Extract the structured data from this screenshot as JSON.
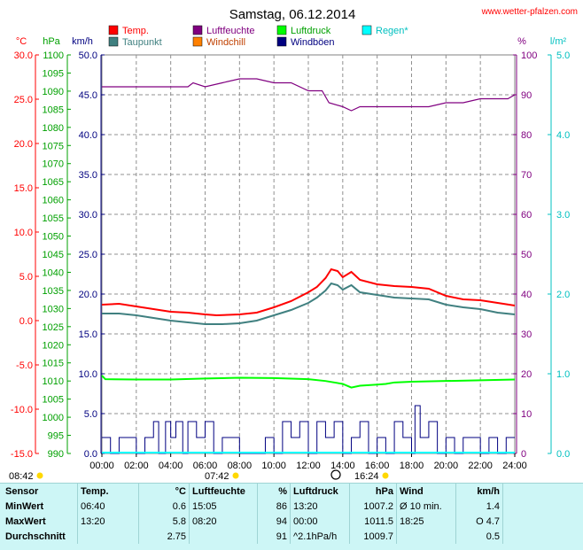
{
  "header": {
    "title": "Samstag, 06.12.2014",
    "site": "www.wetter-pfalzen.com"
  },
  "legend": [
    {
      "label": "Temp.",
      "color": "#ff0000"
    },
    {
      "label": "Luftfeuchte",
      "color": "#800080"
    },
    {
      "label": "Luftdruck",
      "color": "#00ff00"
    },
    {
      "label": "Regen*",
      "color": "#00ffff"
    },
    {
      "label": "Taupunkt",
      "color": "#408080"
    },
    {
      "label": "Windchill",
      "color": "#ff8000"
    },
    {
      "label": "Windböen",
      "color": "#000080"
    }
  ],
  "units": {
    "temp": "°C",
    "pressure": "hPa",
    "wind": "km/h",
    "humidity": "%",
    "rain": "l/m²"
  },
  "axes": {
    "temp_ticks": [
      "30.0",
      "25.0",
      "20.0",
      "15.0",
      "10.0",
      "5.0",
      "0.0",
      "-5.0",
      "-10.0",
      "-15.0"
    ],
    "pressure_ticks": [
      "1100",
      "1095",
      "1090",
      "1085",
      "1080",
      "1075",
      "1070",
      "1065",
      "1060",
      "1055",
      "1050",
      "1045",
      "1040",
      "1035",
      "1030",
      "1025",
      "1020",
      "1015",
      "1010",
      "1005",
      "1000",
      "995",
      "990"
    ],
    "wind_ticks": [
      "50.0",
      "45.0",
      "40.0",
      "35.0",
      "30.0",
      "25.0",
      "20.0",
      "15.0",
      "10.0",
      "5.0",
      "0.0"
    ],
    "humidity_ticks": [
      "100",
      "90",
      "80",
      "70",
      "60",
      "50",
      "40",
      "30",
      "20",
      "10",
      "0"
    ],
    "rain_ticks": [
      "5.0",
      "4.0",
      "3.0",
      "2.0",
      "1.0",
      "0.0"
    ],
    "x_ticks": [
      "00:00",
      "02:00",
      "04:00",
      "06:00",
      "08:00",
      "10:00",
      "12:00",
      "14:00",
      "16:00",
      "18:00",
      "20:00",
      "22:00",
      "24:00"
    ]
  },
  "sun": {
    "sunrise": "08:42",
    "noon": "07:42",
    "sunset": "16:24"
  },
  "chart_data": {
    "type": "line",
    "x_unit": "hour",
    "xlim": [
      0,
      24
    ],
    "ylim_temp": [
      -15,
      30
    ],
    "ylim_humidity": [
      0,
      100
    ],
    "ylim_wind": [
      0,
      50
    ],
    "ylim_pressure": [
      990,
      1100
    ],
    "series": [
      {
        "name": "Temp.",
        "axis": "temp",
        "color": "#ff0000",
        "x": [
          0,
          1,
          2,
          3,
          4,
          5,
          6,
          6.67,
          8,
          9,
          10,
          11,
          12,
          12.5,
          13,
          13.33,
          13.7,
          14,
          14.5,
          15,
          16,
          17,
          18,
          19,
          20,
          21,
          22,
          23,
          24
        ],
        "y": [
          1.8,
          1.9,
          1.6,
          1.3,
          1.0,
          0.9,
          0.7,
          0.6,
          0.7,
          0.9,
          1.5,
          2.2,
          3.2,
          3.8,
          4.8,
          5.8,
          5.6,
          4.9,
          5.5,
          4.6,
          4.1,
          3.9,
          3.8,
          3.6,
          2.8,
          2.4,
          2.3,
          2.0,
          1.7
        ]
      },
      {
        "name": "Taupunkt",
        "axis": "temp",
        "color": "#408080",
        "x": [
          0,
          1,
          2,
          3,
          4,
          5,
          6,
          7,
          8,
          9,
          10,
          11,
          12,
          12.5,
          13,
          13.33,
          13.7,
          14,
          14.5,
          15,
          16,
          17,
          18,
          19,
          20,
          21,
          22,
          23,
          24
        ],
        "y": [
          0.8,
          0.8,
          0.6,
          0.3,
          0.0,
          -0.2,
          -0.4,
          -0.4,
          -0.3,
          0.0,
          0.6,
          1.2,
          2.0,
          2.6,
          3.4,
          4.2,
          4.0,
          3.5,
          4.0,
          3.2,
          2.9,
          2.6,
          2.5,
          2.4,
          1.8,
          1.5,
          1.3,
          0.9,
          0.7
        ]
      },
      {
        "name": "Luftfeuchte",
        "axis": "humidity",
        "color": "#800080",
        "x": [
          0,
          4,
          5,
          5.3,
          6,
          7,
          8,
          9,
          10,
          11,
          12,
          12.8,
          13.2,
          14,
          14.5,
          15,
          16,
          17,
          18,
          19,
          20,
          21,
          22,
          23,
          23.6,
          24
        ],
        "y": [
          92,
          92,
          92,
          93,
          92,
          93,
          94,
          94,
          93,
          93,
          91,
          91,
          88,
          87,
          86,
          87,
          87,
          87,
          87,
          87,
          88,
          88,
          89,
          89,
          89,
          90
        ]
      },
      {
        "name": "Luftdruck",
        "axis": "pressure",
        "color": "#00ff00",
        "x": [
          0,
          0.2,
          2,
          4,
          6,
          8,
          10,
          12,
          13,
          14,
          14.5,
          15,
          16,
          16.5,
          17,
          18,
          20,
          22,
          24
        ],
        "y": [
          1011.5,
          1010.5,
          1010.4,
          1010.4,
          1010.7,
          1010.9,
          1010.8,
          1010.5,
          1010.0,
          1009.2,
          1008.2,
          1008.7,
          1009.0,
          1009.2,
          1009.6,
          1009.8,
          1010.0,
          1010.2,
          1010.4
        ]
      },
      {
        "name": "Windböen",
        "axis": "wind",
        "color": "#000080",
        "x": [
          0,
          0.5,
          1,
          2,
          2.5,
          3,
          3.3,
          3.7,
          4,
          4.3,
          4.7,
          5,
          5.5,
          6,
          6.5,
          7,
          8,
          9,
          9.5,
          10,
          10.5,
          11,
          11.5,
          12,
          12.5,
          13,
          13.5,
          14,
          14.5,
          15,
          15.5,
          16,
          16.5,
          17,
          17.5,
          18,
          18.2,
          18.5,
          19,
          19.5,
          20,
          20.5,
          21,
          21.5,
          22,
          22.5,
          23,
          23.5,
          24
        ],
        "y": [
          2,
          0,
          2,
          0,
          2,
          4,
          0,
          4,
          2,
          4,
          0,
          4,
          2,
          4,
          0,
          2,
          0,
          0,
          2,
          0,
          4,
          2,
          4,
          0,
          4,
          2,
          4,
          0,
          2,
          4,
          0,
          2,
          0,
          4,
          2,
          0,
          6,
          2,
          4,
          0,
          2,
          0,
          2,
          2,
          0,
          2,
          0,
          2,
          2
        ]
      }
    ]
  },
  "stats": {
    "headers": {
      "sensor": "Sensor",
      "temp": "Temp.",
      "temp_unit": "°C",
      "hum": "Luftfeuchte",
      "hum_unit": "%",
      "press": "Luftdruck",
      "press_unit": "hPa",
      "wind": "Wind",
      "wind_unit": "km/h"
    },
    "rows": [
      {
        "label": "MinWert",
        "temp_time": "06:40",
        "temp_val": "0.6",
        "hum_time": "15:05",
        "hum_val": "86",
        "press_time": "13:20",
        "press_val": "1007.2",
        "wind_time": "Ø 10 min.",
        "wind_val": "1.4"
      },
      {
        "label": "MaxWert",
        "temp_time": "13:20",
        "temp_val": "5.8",
        "hum_time": "08:20",
        "hum_val": "94",
        "press_time": "00:00",
        "press_val": "1011.5",
        "wind_time": "18:25",
        "wind_val": "O 4.7"
      },
      {
        "label": "Durchschnitt",
        "temp_time": "",
        "temp_val": "2.75",
        "hum_time": "",
        "hum_val": "91",
        "press_time": "^2.1hPa/h",
        "press_val": "1009.7",
        "wind_time": "",
        "wind_val": "0.5"
      }
    ]
  }
}
